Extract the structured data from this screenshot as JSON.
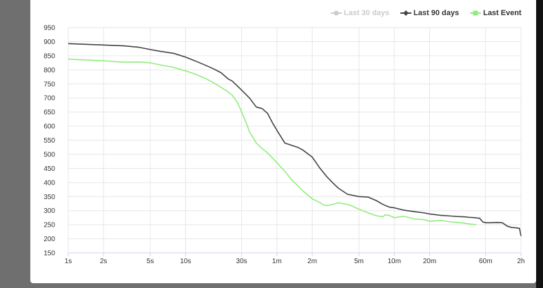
{
  "chart_data": {
    "type": "line",
    "title": "",
    "xlabel": "",
    "ylabel": "",
    "x_scale": "log",
    "x_ticks": [
      {
        "label": "1s",
        "seconds": 1
      },
      {
        "label": "2s",
        "seconds": 2
      },
      {
        "label": "5s",
        "seconds": 5
      },
      {
        "label": "10s",
        "seconds": 10
      },
      {
        "label": "30s",
        "seconds": 30
      },
      {
        "label": "1m",
        "seconds": 60
      },
      {
        "label": "2m",
        "seconds": 120
      },
      {
        "label": "5m",
        "seconds": 300
      },
      {
        "label": "10m",
        "seconds": 600
      },
      {
        "label": "20m",
        "seconds": 1200
      },
      {
        "label": "60m",
        "seconds": 3600
      },
      {
        "label": "2h",
        "seconds": 7200
      }
    ],
    "y_ticks": [
      150,
      200,
      250,
      300,
      350,
      400,
      450,
      500,
      550,
      600,
      650,
      700,
      750,
      800,
      850,
      900,
      950
    ],
    "ylim": [
      150,
      950
    ],
    "grid": true,
    "legend_position": "top-right",
    "series": [
      {
        "name": "Last 30 days",
        "color": "#cccccc",
        "hidden": true,
        "values": []
      },
      {
        "name": "Last 90 days",
        "color": "#434348",
        "marker": "diamond",
        "x": [
          1,
          2,
          3,
          4,
          5,
          6,
          8,
          10,
          12,
          15,
          17,
          20,
          23,
          25,
          30,
          35,
          40,
          45,
          50,
          55,
          60,
          70,
          80,
          90,
          100,
          120,
          140,
          160,
          180,
          200,
          240,
          300,
          360,
          420,
          480,
          540,
          600,
          720,
          900,
          1080,
          1200,
          1500,
          1800,
          2100,
          2400,
          2600,
          2700,
          2900,
          3000,
          3200,
          3400,
          3600,
          4000,
          4500,
          5000,
          5500,
          6000,
          6500,
          7000,
          7200
        ],
        "y": [
          893,
          888,
          885,
          880,
          872,
          866,
          858,
          845,
          832,
          815,
          805,
          790,
          768,
          760,
          728,
          700,
          668,
          662,
          645,
          612,
          585,
          540,
          532,
          525,
          515,
          490,
          450,
          420,
          398,
          380,
          358,
          350,
          348,
          336,
          322,
          313,
          310,
          302,
          296,
          292,
          288,
          283,
          281,
          279,
          278,
          276,
          276,
          275,
          274,
          273,
          260,
          257,
          257,
          258,
          257,
          245,
          240,
          239,
          237,
          210
        ]
      },
      {
        "name": "Last Event",
        "color": "#90ed7d",
        "marker": "square",
        "x": [
          1,
          2,
          3,
          4,
          5,
          6,
          8,
          10,
          12,
          15,
          17,
          20,
          23,
          25,
          28,
          30,
          33,
          35,
          40,
          45,
          50,
          60,
          70,
          80,
          100,
          120,
          140,
          150,
          160,
          180,
          200,
          250,
          300,
          360,
          420,
          480,
          500,
          540,
          600,
          720,
          900,
          1080,
          1200,
          1500,
          1800,
          2100,
          2400,
          2700,
          3000
        ],
        "y": [
          838,
          832,
          827,
          828,
          825,
          818,
          808,
          796,
          785,
          768,
          756,
          738,
          722,
          710,
          680,
          650,
          610,
          580,
          540,
          520,
          505,
          470,
          440,
          410,
          370,
          342,
          328,
          320,
          318,
          322,
          328,
          320,
          305,
          292,
          282,
          278,
          285,
          283,
          275,
          280,
          270,
          268,
          262,
          265,
          260,
          258,
          255,
          252,
          250
        ]
      }
    ]
  }
}
